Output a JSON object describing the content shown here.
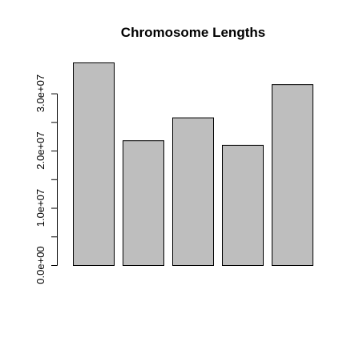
{
  "chart_data": {
    "type": "bar",
    "title": "Chromosome Lengths",
    "xlabel": "",
    "ylabel": "",
    "categories": [
      "",
      "",
      "",
      "",
      ""
    ],
    "values": [
      35400000,
      21800000,
      25800000,
      21000000,
      31600000
    ],
    "ylim": [
      0,
      35400000
    ],
    "yticks": [
      0,
      5000000,
      10000000,
      15000000,
      20000000,
      25000000,
      30000000
    ],
    "ytick_labels": [
      "0.0e+00",
      "",
      "1.0e+07",
      "",
      "2.0e+07",
      "",
      "3.0e+07"
    ],
    "bar_color": "#bebebe",
    "bar_border_color": "#000000",
    "grid": false,
    "legend": "none"
  }
}
